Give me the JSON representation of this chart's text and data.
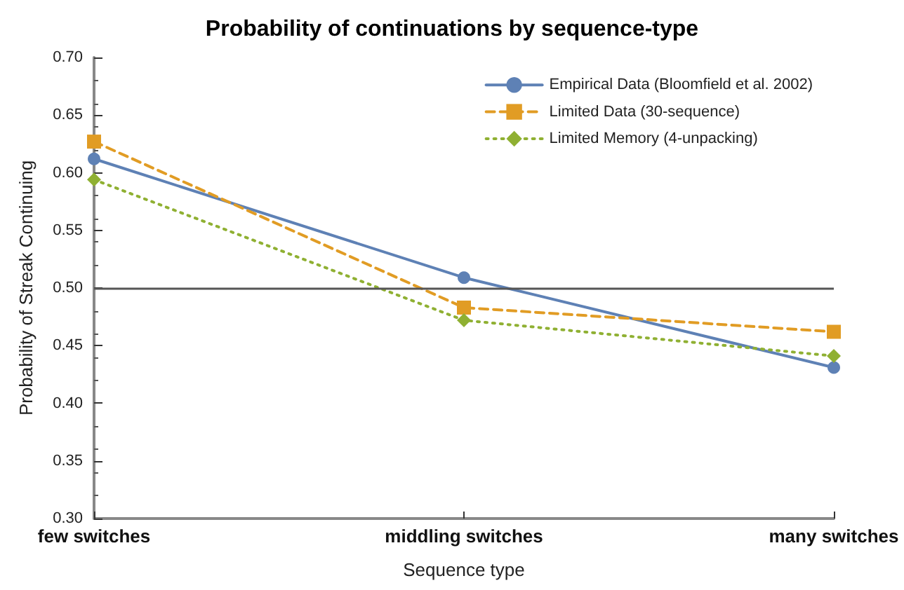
{
  "chart_data": {
    "type": "line",
    "title": "Probability of continuations by sequence-type",
    "xlabel": "Sequence type",
    "ylabel": "Probability of Streak Continuing",
    "categories": [
      "few switches",
      "middling switches",
      "many switches"
    ],
    "series": [
      {
        "name": "Empirical Data (Bloomfield et al. 2002)",
        "color": "#5e81b5",
        "values": [
          0.612,
          0.509,
          0.431
        ],
        "marker": "circle",
        "line_style": "solid"
      },
      {
        "name": "Limited Data (30-sequence)",
        "color": "#e19c24",
        "values": [
          0.627,
          0.483,
          0.462
        ],
        "marker": "square",
        "line_style": "dashed"
      },
      {
        "name": "Limited Memory (4-unpacking)",
        "color": "#8fb032",
        "values": [
          0.594,
          0.472,
          0.441
        ],
        "marker": "diamond",
        "line_style": "dotted"
      }
    ],
    "ylim": [
      0.3,
      0.7
    ],
    "yticks": [
      {
        "value": 0.3,
        "label": "0.30"
      },
      0.35,
      {
        "value": 0.4,
        "label": "0.40"
      },
      0.45,
      {
        "value": 0.5,
        "label": "0.50"
      },
      0.55,
      {
        "value": 0.6,
        "label": "0.60"
      },
      0.65,
      {
        "value": 0.7,
        "label": "0.70"
      }
    ],
    "ref_lines": [
      {
        "axis": "y",
        "value": 0.5,
        "color": "#555555"
      }
    ],
    "grid": false,
    "legend": "top right"
  }
}
